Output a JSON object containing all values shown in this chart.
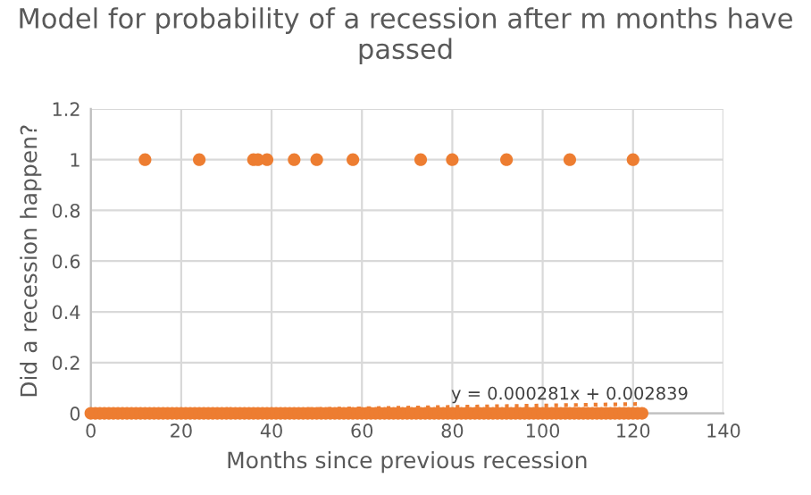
{
  "chart_data": {
    "type": "scatter",
    "title": "Model for probability of a recession after m months have passed",
    "xlabel": "Months since previous recession",
    "ylabel": "Did a recession happen?",
    "xlim": [
      0,
      140
    ],
    "xticks": [
      0,
      20,
      40,
      60,
      80,
      100,
      120,
      140
    ],
    "ylim": [
      0,
      1.2
    ],
    "yticks": [
      0,
      {
        "value": 0.2,
        "label": "0.2"
      },
      {
        "value": 0.4,
        "label": "0.4"
      },
      {
        "value": 0.6,
        "label": "0.6"
      },
      {
        "value": 0.8,
        "label": "0.8"
      },
      1,
      {
        "value": 1.2,
        "label": "1.2"
      }
    ],
    "grid": true,
    "marker": "circle",
    "legend": false,
    "series": [
      {
        "color": "#ed7d31",
        "x": [
          12,
          24,
          36,
          37,
          39,
          45,
          50,
          58,
          73,
          80,
          92,
          106,
          120
        ],
        "values": [
          1,
          1,
          1,
          1,
          1,
          1,
          1,
          1,
          1,
          1,
          1,
          1,
          1
        ]
      },
      {
        "color": "#ed7d31",
        "x": [
          0,
          1,
          2,
          3,
          4,
          5,
          6,
          7,
          8,
          9,
          10,
          11,
          12,
          13,
          14,
          15,
          16,
          17,
          18,
          19,
          20,
          21,
          22,
          23,
          24,
          25,
          26,
          27,
          28,
          29,
          30,
          31,
          32,
          33,
          34,
          35,
          36,
          37,
          38,
          39,
          40,
          41,
          42,
          43,
          44,
          45,
          46,
          47,
          48,
          49,
          50,
          51,
          52,
          53,
          54,
          55,
          56,
          57,
          58,
          59,
          60,
          61,
          62,
          63,
          64,
          65,
          66,
          67,
          68,
          69,
          70,
          71,
          72,
          73,
          74,
          75,
          76,
          77,
          78,
          79,
          80,
          81,
          82,
          83,
          84,
          85,
          86,
          87,
          88,
          89,
          90,
          91,
          92,
          93,
          94,
          95,
          96,
          97,
          98,
          99,
          100,
          101,
          102,
          103,
          104,
          105,
          106,
          107,
          108,
          109,
          110,
          111,
          112,
          113,
          114,
          115,
          116,
          117,
          118,
          119,
          120,
          121,
          122
        ],
        "values": [
          0,
          0,
          0,
          0,
          0,
          0,
          0,
          0,
          0,
          0,
          0,
          0,
          0,
          0,
          0,
          0,
          0,
          0,
          0,
          0,
          0,
          0,
          0,
          0,
          0,
          0,
          0,
          0,
          0,
          0,
          0,
          0,
          0,
          0,
          0,
          0,
          0,
          0,
          0,
          0,
          0,
          0,
          0,
          0,
          0,
          0,
          0,
          0,
          0,
          0,
          0,
          0,
          0,
          0,
          0,
          0,
          0,
          0,
          0,
          0,
          0,
          0,
          0,
          0,
          0,
          0,
          0,
          0,
          0,
          0,
          0,
          0,
          0,
          0,
          0,
          0,
          0,
          0,
          0,
          0,
          0,
          0,
          0,
          0,
          0,
          0,
          0,
          0,
          0,
          0,
          0,
          0,
          0,
          0,
          0,
          0,
          0,
          0,
          0,
          0,
          0,
          0,
          0,
          0,
          0,
          0,
          0,
          0,
          0,
          0,
          0,
          0,
          0,
          0,
          0,
          0,
          0,
          0,
          0,
          0,
          0,
          0,
          0
        ]
      },
      {
        "type": "line",
        "color": "#ed7d31",
        "line_style": "dotted",
        "marker": "none",
        "x": [
          0,
          122
        ],
        "values": [
          0.003,
          0.037
        ]
      }
    ],
    "annotations": [
      {
        "text": "y = 0.000281x + 0.002839",
        "x": 106,
        "y": 0.04
      }
    ]
  }
}
